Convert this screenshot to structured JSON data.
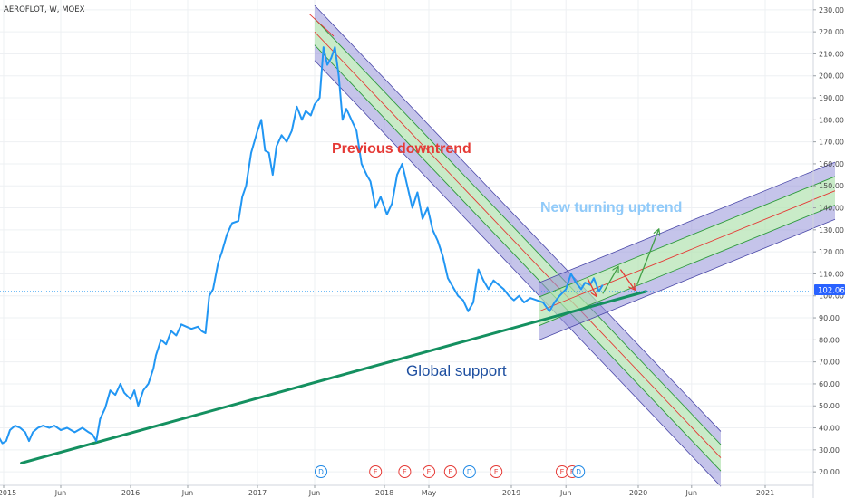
{
  "header": {
    "symbol_title": "AEROFLOT, W, MOEX"
  },
  "price_tag": {
    "value": "102.06",
    "level": 102.06,
    "bg_color": "#2962ff"
  },
  "colors": {
    "price_line": "#2196f3",
    "support_line": "#149060",
    "channel_outer": "#9593d8",
    "channel_inner": "#b2e3b0",
    "median_line": "#e53935",
    "downtrend_text": "#e53935",
    "uptrend_text": "#90caf9",
    "support_text": "#1e4fa0",
    "arrow_red": "#e53935",
    "arrow_green": "#43a047"
  },
  "annotations": {
    "previous_downtrend": "Previous downtrend",
    "new_uptrend": "New turning uptrend",
    "global_support": "Global support"
  },
  "chart_data": {
    "type": "line",
    "title": "AEROFLOT, W, MOEX",
    "xlabel": "",
    "ylabel": "",
    "ylim": [
      15,
      233
    ],
    "xlim": [
      2015.0,
      2021.55
    ],
    "x_ticks": [
      {
        "label": "2015",
        "x": 2015.0
      },
      {
        "label": "Jun",
        "x": 2015.45
      },
      {
        "label": "2016",
        "x": 2016.0
      },
      {
        "label": "Jun",
        "x": 2016.45
      },
      {
        "label": "2017",
        "x": 2017.0
      },
      {
        "label": "Jun",
        "x": 2017.45
      },
      {
        "label": "2018",
        "x": 2018.0
      },
      {
        "label": "May",
        "x": 2018.35
      },
      {
        "label": "2019",
        "x": 2019.0
      },
      {
        "label": "Jun",
        "x": 2019.43
      },
      {
        "label": "2020",
        "x": 2020.0
      },
      {
        "label": "Jun",
        "x": 2020.42
      },
      {
        "label": "2021",
        "x": 2021.0
      }
    ],
    "y_ticks": [
      "20.00",
      "30.00",
      "40.00",
      "50.00",
      "60.00",
      "70.00",
      "80.00",
      "90.00",
      "100.00",
      "110.00",
      "120.00",
      "130.00",
      "140.00",
      "150.00",
      "160.00",
      "170.00",
      "180.00",
      "190.00",
      "200.00",
      "210.00",
      "220.00",
      "230.00"
    ],
    "series": [
      {
        "values": [
          [
            2014.96,
            36
          ],
          [
            2014.99,
            33
          ],
          [
            2015.02,
            34
          ],
          [
            2015.05,
            39
          ],
          [
            2015.09,
            41
          ],
          [
            2015.13,
            40
          ],
          [
            2015.17,
            38
          ],
          [
            2015.2,
            34
          ],
          [
            2015.23,
            38
          ],
          [
            2015.27,
            40
          ],
          [
            2015.31,
            41
          ],
          [
            2015.36,
            40
          ],
          [
            2015.4,
            41
          ],
          [
            2015.45,
            39
          ],
          [
            2015.5,
            40
          ],
          [
            2015.56,
            38
          ],
          [
            2015.62,
            40
          ],
          [
            2015.67,
            38
          ],
          [
            2015.7,
            37
          ],
          [
            2015.73,
            34
          ],
          [
            2015.76,
            44
          ],
          [
            2015.8,
            49
          ],
          [
            2015.84,
            57
          ],
          [
            2015.88,
            55
          ],
          [
            2015.92,
            60
          ],
          [
            2015.95,
            56
          ],
          [
            2016.0,
            53
          ],
          [
            2016.03,
            57
          ],
          [
            2016.06,
            50
          ],
          [
            2016.1,
            57
          ],
          [
            2016.14,
            60
          ],
          [
            2016.18,
            67
          ],
          [
            2016.2,
            73
          ],
          [
            2016.24,
            80
          ],
          [
            2016.28,
            78
          ],
          [
            2016.32,
            84
          ],
          [
            2016.36,
            82
          ],
          [
            2016.4,
            87
          ],
          [
            2016.44,
            86
          ],
          [
            2016.48,
            85
          ],
          [
            2016.53,
            86
          ],
          [
            2016.56,
            84
          ],
          [
            2016.59,
            83
          ],
          [
            2016.62,
            100
          ],
          [
            2016.65,
            103
          ],
          [
            2016.69,
            115
          ],
          [
            2016.72,
            120
          ],
          [
            2016.76,
            128
          ],
          [
            2016.8,
            133
          ],
          [
            2016.85,
            134
          ],
          [
            2016.88,
            145
          ],
          [
            2016.91,
            150
          ],
          [
            2016.95,
            165
          ],
          [
            2017.0,
            175
          ],
          [
            2017.03,
            180
          ],
          [
            2017.06,
            166
          ],
          [
            2017.09,
            165
          ],
          [
            2017.12,
            155
          ],
          [
            2017.15,
            168
          ],
          [
            2017.19,
            173
          ],
          [
            2017.23,
            170
          ],
          [
            2017.27,
            175
          ],
          [
            2017.31,
            186
          ],
          [
            2017.35,
            180
          ],
          [
            2017.38,
            184
          ],
          [
            2017.42,
            182
          ],
          [
            2017.45,
            187
          ],
          [
            2017.49,
            190
          ],
          [
            2017.52,
            213
          ],
          [
            2017.55,
            205
          ],
          [
            2017.58,
            208
          ],
          [
            2017.61,
            213
          ],
          [
            2017.64,
            200
          ],
          [
            2017.67,
            180
          ],
          [
            2017.7,
            185
          ],
          [
            2017.74,
            180
          ],
          [
            2017.78,
            175
          ],
          [
            2017.82,
            160
          ],
          [
            2017.86,
            155
          ],
          [
            2017.89,
            152
          ],
          [
            2017.93,
            140
          ],
          [
            2017.97,
            145
          ],
          [
            2018.02,
            137
          ],
          [
            2018.06,
            142
          ],
          [
            2018.1,
            155
          ],
          [
            2018.14,
            160
          ],
          [
            2018.18,
            150
          ],
          [
            2018.22,
            140
          ],
          [
            2018.26,
            147
          ],
          [
            2018.3,
            135
          ],
          [
            2018.34,
            140
          ],
          [
            2018.38,
            130
          ],
          [
            2018.42,
            125
          ],
          [
            2018.46,
            118
          ],
          [
            2018.5,
            108
          ],
          [
            2018.54,
            104
          ],
          [
            2018.58,
            100
          ],
          [
            2018.62,
            98
          ],
          [
            2018.66,
            93
          ],
          [
            2018.7,
            97
          ],
          [
            2018.74,
            112
          ],
          [
            2018.78,
            107
          ],
          [
            2018.82,
            103
          ],
          [
            2018.86,
            107
          ],
          [
            2018.9,
            105
          ],
          [
            2018.94,
            103
          ],
          [
            2018.98,
            100
          ],
          [
            2019.02,
            98
          ],
          [
            2019.06,
            100
          ],
          [
            2019.1,
            97
          ],
          [
            2019.15,
            99
          ],
          [
            2019.2,
            98
          ],
          [
            2019.25,
            97
          ],
          [
            2019.3,
            93
          ],
          [
            2019.34,
            97
          ],
          [
            2019.38,
            100
          ],
          [
            2019.43,
            103
          ],
          [
            2019.47,
            110
          ],
          [
            2019.51,
            106
          ],
          [
            2019.55,
            103
          ],
          [
            2019.58,
            106
          ],
          [
            2019.62,
            105
          ],
          [
            2019.65,
            108
          ],
          [
            2019.69,
            102
          ],
          [
            2019.72,
            105
          ]
        ]
      }
    ],
    "global_support": {
      "from": [
        2015.14,
        24
      ],
      "to": [
        2020.06,
        102
      ]
    },
    "downtrend_channel": {
      "start_x": 2017.45,
      "end_x": 2020.65,
      "median_start": 220,
      "slope_per_year": -60.5,
      "outer_upper_offset": 12,
      "inner_upper_offset": 6,
      "inner_lower_offset": -6,
      "outer_lower_offset": -13
    },
    "uptrend_channel": {
      "start_x": 2019.22,
      "end_x": 2021.55,
      "median_start": 93,
      "slope_per_year": 23.5,
      "outer_upper_offset": 13,
      "inner_upper_offset": 6.5,
      "inner_lower_offset": -6.5,
      "outer_lower_offset": -13
    },
    "event_markers": [
      {
        "letter": "D",
        "x": 2017.5,
        "kind": "dividend"
      },
      {
        "letter": "E",
        "x": 2017.93,
        "kind": "earnings"
      },
      {
        "letter": "E",
        "x": 2018.16,
        "kind": "earnings"
      },
      {
        "letter": "E",
        "x": 2018.35,
        "kind": "earnings"
      },
      {
        "letter": "E",
        "x": 2018.52,
        "kind": "earnings"
      },
      {
        "letter": "D",
        "x": 2018.67,
        "kind": "dividend"
      },
      {
        "letter": "E",
        "x": 2018.88,
        "kind": "earnings"
      },
      {
        "letter": "E",
        "x": 2019.4,
        "kind": "earnings"
      },
      {
        "letter": "E",
        "x": 2019.48,
        "kind": "earnings"
      },
      {
        "letter": "D",
        "x": 2019.53,
        "kind": "dividend"
      }
    ],
    "arrows": [
      {
        "color": "red",
        "from": [
          2019.6,
          108
        ],
        "to": [
          2019.67,
          100
        ]
      },
      {
        "color": "green",
        "from": [
          2019.72,
          101
        ],
        "to": [
          2019.84,
          113
        ]
      },
      {
        "color": "red",
        "from": [
          2019.86,
          112
        ],
        "to": [
          2019.97,
          103
        ]
      },
      {
        "color": "green",
        "from": [
          2019.99,
          105
        ],
        "to": [
          2020.16,
          130
        ]
      }
    ]
  }
}
